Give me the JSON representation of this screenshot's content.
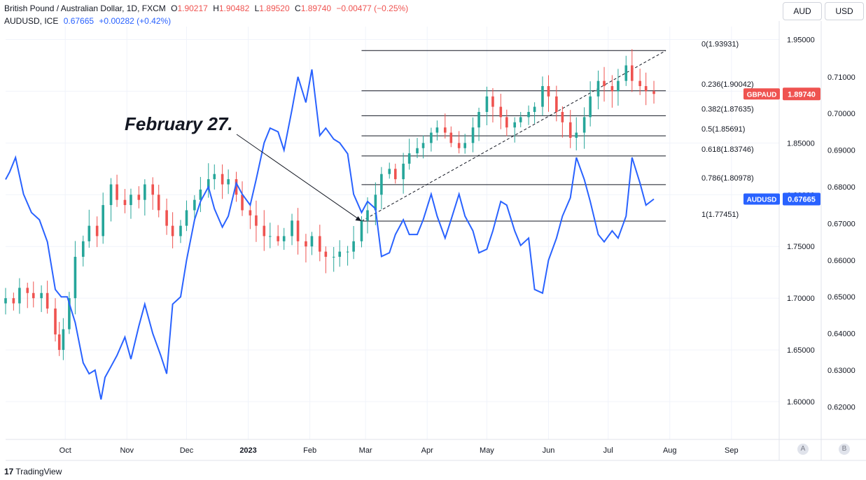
{
  "header": {
    "line1": {
      "title": "British Pound / Australian Dollar, 1D, FXCM",
      "o_label": "O",
      "o_value": "1.90217",
      "h_label": "H",
      "h_value": "1.90482",
      "l_label": "L",
      "l_value": "1.89520",
      "c_label": "C",
      "c_value": "1.89740",
      "change": "−0.00477 (−0.25%)"
    },
    "line2": {
      "title": "AUDUSD, ICE",
      "value": "0.67665",
      "change": "+0.00282 (+0.42%)"
    }
  },
  "scale_buttons": {
    "aud": "AUD",
    "usd": "USD"
  },
  "corner_buttons": {
    "a": "A",
    "b": "B"
  },
  "logo": {
    "mark": "17",
    "text": "TradingView"
  },
  "annotation": {
    "text": "February 27."
  },
  "colors": {
    "up": "#26a69a",
    "down": "#ef5350",
    "audusd": "#2962ff",
    "gbpaud_badge": "#ef5350",
    "audusd_badge": "#2962ff"
  },
  "chart_data": {
    "type": "line",
    "x_tick_labels": [
      "Oct",
      "Nov",
      "Dec",
      "2023",
      "Feb",
      "Mar",
      "Apr",
      "May",
      "Jun",
      "Jul",
      "Aug",
      "Sep"
    ],
    "x_ticks": [
      "2022-10-01",
      "2022-11-01",
      "2022-12-01",
      "2023-01-01",
      "2023-02-01",
      "2023-03-01",
      "2023-04-01",
      "2023-05-01",
      "2023-06-01",
      "2023-07-01",
      "2023-08-01",
      "2023-09-01"
    ],
    "x_range": [
      "2022-09-01",
      "2023-09-25"
    ],
    "left_axis": {
      "name": "GBPAUD",
      "ylim": [
        1.5635,
        1.9625
      ],
      "tick_labels": [
        "1.95000",
        "1.90000",
        "1.85000",
        "1.80000",
        "1.75000",
        "1.70000",
        "1.65000",
        "1.60000"
      ],
      "ticks": [
        1.95,
        1.9,
        1.85,
        1.8,
        1.75,
        1.7,
        1.65,
        1.6
      ]
    },
    "right_axis": {
      "name": "AUDUSD",
      "ylim": [
        0.6111,
        0.7237
      ],
      "tick_labels": [
        "0.71000",
        "0.70000",
        "0.69000",
        "0.68000",
        "0.67000",
        "0.66000",
        "0.65000",
        "0.64000",
        "0.63000",
        "0.62000"
      ],
      "ticks": [
        0.71,
        0.7,
        0.69,
        0.68,
        0.67,
        0.66,
        0.65,
        0.64,
        0.63,
        0.62
      ]
    },
    "last_value_badges": [
      {
        "name": "GBPAUD",
        "value": "1.89740",
        "axis": "left"
      },
      {
        "name": "AUDUSD",
        "value": "0.67665",
        "axis": "right"
      }
    ],
    "series": [
      {
        "name": "GBPAUD",
        "kind": "candlestick",
        "axis": "left",
        "points": [
          {
            "d": "2022-09-01",
            "c": 1.7
          },
          {
            "d": "2022-09-05",
            "c": 1.695
          },
          {
            "d": "2022-09-08",
            "c": 1.71
          },
          {
            "d": "2022-09-12",
            "c": 1.705
          },
          {
            "d": "2022-09-15",
            "c": 1.7
          },
          {
            "d": "2022-09-19",
            "c": 1.705
          },
          {
            "d": "2022-09-22",
            "c": 1.69
          },
          {
            "d": "2022-09-26",
            "c": 1.665
          },
          {
            "d": "2022-09-28",
            "c": 1.65
          },
          {
            "d": "2022-09-30",
            "c": 1.67
          },
          {
            "d": "2022-10-03",
            "c": 1.7
          },
          {
            "d": "2022-10-06",
            "c": 1.74
          },
          {
            "d": "2022-10-10",
            "c": 1.755
          },
          {
            "d": "2022-10-13",
            "c": 1.77
          },
          {
            "d": "2022-10-17",
            "c": 1.76
          },
          {
            "d": "2022-10-20",
            "c": 1.79
          },
          {
            "d": "2022-10-24",
            "c": 1.81
          },
          {
            "d": "2022-10-27",
            "c": 1.795
          },
          {
            "d": "2022-10-31",
            "c": 1.79
          },
          {
            "d": "2022-11-03",
            "c": 1.8
          },
          {
            "d": "2022-11-07",
            "c": 1.795
          },
          {
            "d": "2022-11-10",
            "c": 1.81
          },
          {
            "d": "2022-11-14",
            "c": 1.8
          },
          {
            "d": "2022-11-17",
            "c": 1.785
          },
          {
            "d": "2022-11-21",
            "c": 1.77
          },
          {
            "d": "2022-11-24",
            "c": 1.76
          },
          {
            "d": "2022-11-28",
            "c": 1.77
          },
          {
            "d": "2022-12-01",
            "c": 1.785
          },
          {
            "d": "2022-12-05",
            "c": 1.795
          },
          {
            "d": "2022-12-08",
            "c": 1.805
          },
          {
            "d": "2022-12-12",
            "c": 1.815
          },
          {
            "d": "2022-12-15",
            "c": 1.82
          },
          {
            "d": "2022-12-19",
            "c": 1.81
          },
          {
            "d": "2022-12-22",
            "c": 1.815
          },
          {
            "d": "2022-12-26",
            "c": 1.8
          },
          {
            "d": "2022-12-29",
            "c": 1.785
          },
          {
            "d": "2023-01-02",
            "c": 1.78
          },
          {
            "d": "2023-01-05",
            "c": 1.77
          },
          {
            "d": "2023-01-09",
            "c": 1.76
          },
          {
            "d": "2023-01-12",
            "c": 1.76
          },
          {
            "d": "2023-01-16",
            "c": 1.755
          },
          {
            "d": "2023-01-19",
            "c": 1.76
          },
          {
            "d": "2023-01-23",
            "c": 1.775
          },
          {
            "d": "2023-01-26",
            "c": 1.755
          },
          {
            "d": "2023-01-30",
            "c": 1.75
          },
          {
            "d": "2023-02-02",
            "c": 1.76
          },
          {
            "d": "2023-02-06",
            "c": 1.745
          },
          {
            "d": "2023-02-09",
            "c": 1.74
          },
          {
            "d": "2023-02-13",
            "c": 1.74
          },
          {
            "d": "2023-02-16",
            "c": 1.745
          },
          {
            "d": "2023-02-20",
            "c": 1.745
          },
          {
            "d": "2023-02-23",
            "c": 1.755
          },
          {
            "d": "2023-02-27",
            "c": 1.775
          },
          {
            "d": "2023-03-02",
            "c": 1.785
          },
          {
            "d": "2023-03-06",
            "c": 1.8
          },
          {
            "d": "2023-03-09",
            "c": 1.82
          },
          {
            "d": "2023-03-13",
            "c": 1.825
          },
          {
            "d": "2023-03-16",
            "c": 1.815
          },
          {
            "d": "2023-03-20",
            "c": 1.83
          },
          {
            "d": "2023-03-23",
            "c": 1.84
          },
          {
            "d": "2023-03-27",
            "c": 1.845
          },
          {
            "d": "2023-03-30",
            "c": 1.85
          },
          {
            "d": "2023-04-03",
            "c": 1.86
          },
          {
            "d": "2023-04-06",
            "c": 1.865
          },
          {
            "d": "2023-04-10",
            "c": 1.86
          },
          {
            "d": "2023-04-13",
            "c": 1.85
          },
          {
            "d": "2023-04-17",
            "c": 1.845
          },
          {
            "d": "2023-04-20",
            "c": 1.85
          },
          {
            "d": "2023-04-24",
            "c": 1.865
          },
          {
            "d": "2023-04-27",
            "c": 1.88
          },
          {
            "d": "2023-05-01",
            "c": 1.895
          },
          {
            "d": "2023-05-04",
            "c": 1.885
          },
          {
            "d": "2023-05-08",
            "c": 1.875
          },
          {
            "d": "2023-05-11",
            "c": 1.865
          },
          {
            "d": "2023-05-15",
            "c": 1.87
          },
          {
            "d": "2023-05-18",
            "c": 1.875
          },
          {
            "d": "2023-05-22",
            "c": 1.88
          },
          {
            "d": "2023-05-25",
            "c": 1.885
          },
          {
            "d": "2023-05-29",
            "c": 1.905
          },
          {
            "d": "2023-06-01",
            "c": 1.895
          },
          {
            "d": "2023-06-05",
            "c": 1.88
          },
          {
            "d": "2023-06-08",
            "c": 1.87
          },
          {
            "d": "2023-06-12",
            "c": 1.855
          },
          {
            "d": "2023-06-15",
            "c": 1.86
          },
          {
            "d": "2023-06-19",
            "c": 1.875
          },
          {
            "d": "2023-06-22",
            "c": 1.895
          },
          {
            "d": "2023-06-26",
            "c": 1.91
          },
          {
            "d": "2023-06-29",
            "c": 1.905
          },
          {
            "d": "2023-07-03",
            "c": 1.9
          },
          {
            "d": "2023-07-06",
            "c": 1.91
          },
          {
            "d": "2023-07-10",
            "c": 1.925
          },
          {
            "d": "2023-07-13",
            "c": 1.91
          },
          {
            "d": "2023-07-17",
            "c": 1.905
          },
          {
            "d": "2023-07-20",
            "c": 1.9
          },
          {
            "d": "2023-07-24",
            "c": 1.8974
          }
        ]
      },
      {
        "name": "AUDUSD",
        "kind": "line",
        "axis": "right",
        "points": [
          {
            "d": "2022-09-01",
            "v": 0.682
          },
          {
            "d": "2022-09-03",
            "v": 0.684
          },
          {
            "d": "2022-09-06",
            "v": 0.688
          },
          {
            "d": "2022-09-10",
            "v": 0.678
          },
          {
            "d": "2022-09-14",
            "v": 0.673
          },
          {
            "d": "2022-09-18",
            "v": 0.671
          },
          {
            "d": "2022-09-22",
            "v": 0.665
          },
          {
            "d": "2022-09-26",
            "v": 0.652
          },
          {
            "d": "2022-09-29",
            "v": 0.65
          },
          {
            "d": "2022-10-02",
            "v": 0.65
          },
          {
            "d": "2022-10-06",
            "v": 0.643
          },
          {
            "d": "2022-10-10",
            "v": 0.632
          },
          {
            "d": "2022-10-13",
            "v": 0.629
          },
          {
            "d": "2022-10-16",
            "v": 0.63
          },
          {
            "d": "2022-10-19",
            "v": 0.622
          },
          {
            "d": "2022-10-21",
            "v": 0.628
          },
          {
            "d": "2022-10-24",
            "v": 0.631
          },
          {
            "d": "2022-10-27",
            "v": 0.634
          },
          {
            "d": "2022-10-31",
            "v": 0.639
          },
          {
            "d": "2022-11-03",
            "v": 0.633
          },
          {
            "d": "2022-11-07",
            "v": 0.642
          },
          {
            "d": "2022-11-10",
            "v": 0.648
          },
          {
            "d": "2022-11-14",
            "v": 0.64
          },
          {
            "d": "2022-11-18",
            "v": 0.634
          },
          {
            "d": "2022-11-21",
            "v": 0.629
          },
          {
            "d": "2022-11-24",
            "v": 0.648
          },
          {
            "d": "2022-11-28",
            "v": 0.65
          },
          {
            "d": "2022-12-01",
            "v": 0.66
          },
          {
            "d": "2022-12-05",
            "v": 0.671
          },
          {
            "d": "2022-12-08",
            "v": 0.676
          },
          {
            "d": "2022-12-12",
            "v": 0.68
          },
          {
            "d": "2022-12-15",
            "v": 0.674
          },
          {
            "d": "2022-12-19",
            "v": 0.669
          },
          {
            "d": "2022-12-22",
            "v": 0.672
          },
          {
            "d": "2022-12-26",
            "v": 0.681
          },
          {
            "d": "2022-12-29",
            "v": 0.678
          },
          {
            "d": "2023-01-02",
            "v": 0.675
          },
          {
            "d": "2023-01-05",
            "v": 0.682
          },
          {
            "d": "2023-01-09",
            "v": 0.692
          },
          {
            "d": "2023-01-12",
            "v": 0.696
          },
          {
            "d": "2023-01-16",
            "v": 0.695
          },
          {
            "d": "2023-01-19",
            "v": 0.69
          },
          {
            "d": "2023-01-23",
            "v": 0.701
          },
          {
            "d": "2023-01-26",
            "v": 0.71
          },
          {
            "d": "2023-01-30",
            "v": 0.703
          },
          {
            "d": "2023-02-02",
            "v": 0.712
          },
          {
            "d": "2023-02-06",
            "v": 0.694
          },
          {
            "d": "2023-02-09",
            "v": 0.696
          },
          {
            "d": "2023-02-13",
            "v": 0.693
          },
          {
            "d": "2023-02-16",
            "v": 0.692
          },
          {
            "d": "2023-02-20",
            "v": 0.689
          },
          {
            "d": "2023-02-23",
            "v": 0.678
          },
          {
            "d": "2023-02-27",
            "v": 0.673
          },
          {
            "d": "2023-03-02",
            "v": 0.676
          },
          {
            "d": "2023-03-06",
            "v": 0.674
          },
          {
            "d": "2023-03-09",
            "v": 0.661
          },
          {
            "d": "2023-03-13",
            "v": 0.662
          },
          {
            "d": "2023-03-16",
            "v": 0.667
          },
          {
            "d": "2023-03-20",
            "v": 0.671
          },
          {
            "d": "2023-03-23",
            "v": 0.667
          },
          {
            "d": "2023-03-27",
            "v": 0.667
          },
          {
            "d": "2023-03-30",
            "v": 0.671
          },
          {
            "d": "2023-04-03",
            "v": 0.678
          },
          {
            "d": "2023-04-06",
            "v": 0.672
          },
          {
            "d": "2023-04-10",
            "v": 0.666
          },
          {
            "d": "2023-04-13",
            "v": 0.671
          },
          {
            "d": "2023-04-17",
            "v": 0.678
          },
          {
            "d": "2023-04-20",
            "v": 0.672
          },
          {
            "d": "2023-04-24",
            "v": 0.668
          },
          {
            "d": "2023-04-27",
            "v": 0.662
          },
          {
            "d": "2023-05-01",
            "v": 0.663
          },
          {
            "d": "2023-05-04",
            "v": 0.668
          },
          {
            "d": "2023-05-08",
            "v": 0.676
          },
          {
            "d": "2023-05-11",
            "v": 0.675
          },
          {
            "d": "2023-05-15",
            "v": 0.668
          },
          {
            "d": "2023-05-18",
            "v": 0.664
          },
          {
            "d": "2023-05-22",
            "v": 0.666
          },
          {
            "d": "2023-05-25",
            "v": 0.652
          },
          {
            "d": "2023-05-29",
            "v": 0.651
          },
          {
            "d": "2023-06-01",
            "v": 0.66
          },
          {
            "d": "2023-06-05",
            "v": 0.666
          },
          {
            "d": "2023-06-08",
            "v": 0.672
          },
          {
            "d": "2023-06-12",
            "v": 0.677
          },
          {
            "d": "2023-06-15",
            "v": 0.688
          },
          {
            "d": "2023-06-19",
            "v": 0.682
          },
          {
            "d": "2023-06-22",
            "v": 0.676
          },
          {
            "d": "2023-06-26",
            "v": 0.667
          },
          {
            "d": "2023-06-29",
            "v": 0.665
          },
          {
            "d": "2023-07-03",
            "v": 0.668
          },
          {
            "d": "2023-07-06",
            "v": 0.666
          },
          {
            "d": "2023-07-10",
            "v": 0.672
          },
          {
            "d": "2023-07-13",
            "v": 0.688
          },
          {
            "d": "2023-07-17",
            "v": 0.681
          },
          {
            "d": "2023-07-20",
            "v": 0.675
          },
          {
            "d": "2023-07-24",
            "v": 0.67665
          }
        ]
      }
    ],
    "fibonacci": {
      "axis": "left",
      "x_start": "2023-02-27",
      "x_end": "2023-07-30",
      "levels": [
        {
          "label": "0(1.93931)",
          "value": 1.93931
        },
        {
          "label": "0.236(1.90042)",
          "value": 1.90042
        },
        {
          "label": "0.382(1.87635)",
          "value": 1.87635
        },
        {
          "label": "0.5(1.85691)",
          "value": 1.85691
        },
        {
          "label": "0.618(1.83746)",
          "value": 1.83746
        },
        {
          "label": "0.786(1.80978)",
          "value": 1.80978
        },
        {
          "label": "1(1.77451)",
          "value": 1.77451
        }
      ],
      "trend_line": {
        "from": {
          "d": "2023-02-27",
          "v": 1.77451
        },
        "to": {
          "d": "2023-07-30",
          "v": 1.93931
        }
      }
    },
    "annotation_arrow_target": {
      "d": "2023-02-27",
      "v": 1.77451
    }
  }
}
